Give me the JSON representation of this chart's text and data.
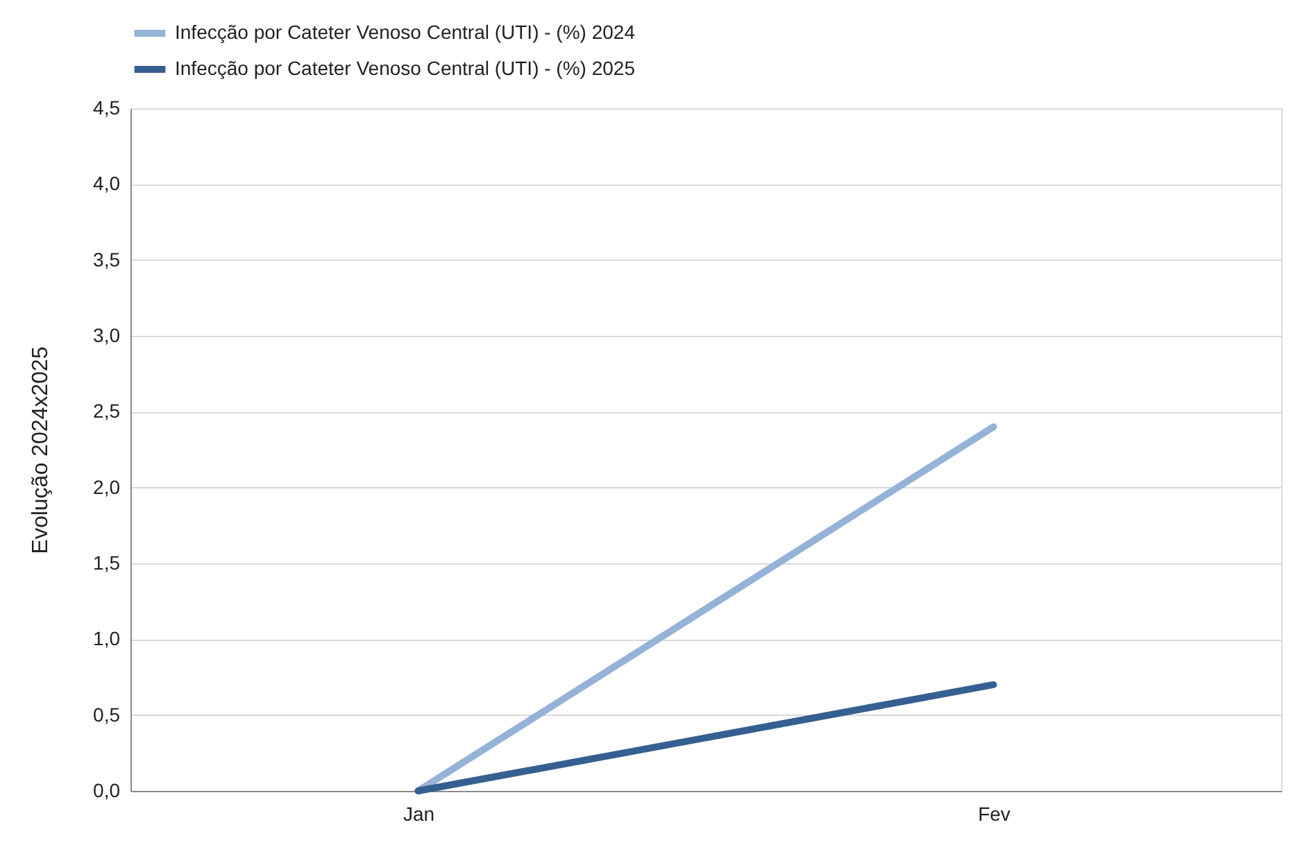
{
  "chart_data": {
    "type": "line",
    "ylabel": "Evolução  2024x2025",
    "categories": [
      "Jan",
      "Fev"
    ],
    "series": [
      {
        "name": "Infecção por Cateter Venoso Central (UTI) - (%) 2024",
        "color": "#95b3d7",
        "values": [
          0,
          2.4
        ]
      },
      {
        "name": "Infecção por Cateter Venoso Central (UTI) - (%) 2025",
        "color": "#365f91",
        "values": [
          0,
          0.7
        ]
      }
    ],
    "ylim": [
      0,
      4.5
    ],
    "yticks": [
      {
        "value": 0,
        "label": "0,0"
      },
      {
        "value": 0.5,
        "label": "0,5"
      },
      {
        "value": 1,
        "label": "1,0"
      },
      {
        "value": 1.5,
        "label": "1,5"
      },
      {
        "value": 2,
        "label": "2,0"
      },
      {
        "value": 2.5,
        "label": "2,5"
      },
      {
        "value": 3,
        "label": "3,0"
      },
      {
        "value": 3.5,
        "label": "3,5"
      },
      {
        "value": 4,
        "label": "4,0"
      },
      {
        "value": 4.5,
        "label": "4,5"
      }
    ],
    "grid": "y",
    "legend": "top",
    "marker": "none",
    "line_style": "solid"
  }
}
